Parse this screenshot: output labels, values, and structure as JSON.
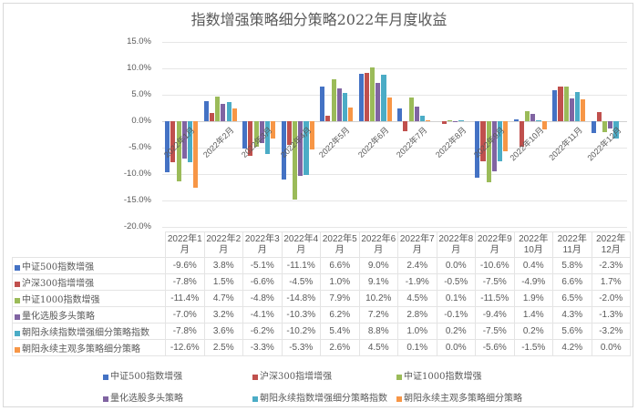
{
  "chart_data": {
    "type": "bar",
    "title": "指数增强策略细分策略2022年月度收益",
    "xlabel": "",
    "ylabel": "",
    "ylim": [
      -0.2,
      0.15
    ],
    "yticks": [
      "15.0%",
      "10.0%",
      "5.0%",
      "0.0%",
      "-5.0%",
      "-10.0%",
      "-15.0%",
      "-20.0%"
    ],
    "grid": true,
    "legend_position": "bottom",
    "categories": [
      "2022年1月",
      "2022年2月",
      "2022年3月",
      "2022年4月",
      "2022年5月",
      "2022年6月",
      "2022年7月",
      "2022年8月",
      "2022年9月",
      "2022年10月",
      "2022年11月",
      "2022年12月"
    ],
    "table_headers": [
      [
        "2022年1",
        "月"
      ],
      [
        "2022年2",
        "月"
      ],
      [
        "2022年3",
        "月"
      ],
      [
        "2022年4",
        "月"
      ],
      [
        "2022年5",
        "月"
      ],
      [
        "2022年6",
        "月"
      ],
      [
        "2022年7",
        "月"
      ],
      [
        "2022年8",
        "月"
      ],
      [
        "2022年9",
        "月"
      ],
      [
        "2022年",
        "10月"
      ],
      [
        "2022年",
        "11月"
      ],
      [
        "2022年",
        "12月"
      ]
    ],
    "series": [
      {
        "name": "中证500指数增强",
        "color": "#4472c4",
        "values": [
          -9.6,
          3.8,
          -5.1,
          -11.1,
          6.6,
          9.0,
          2.4,
          0.0,
          -10.6,
          0.4,
          5.8,
          -2.3
        ],
        "labels": [
          "-9.6%",
          "3.8%",
          "-5.1%",
          "-11.1%",
          "6.6%",
          "9.0%",
          "2.4%",
          "0.0%",
          "-10.6%",
          "0.4%",
          "5.8%",
          "-2.3%"
        ]
      },
      {
        "name": "沪深300指增增强",
        "color": "#c0504d",
        "values": [
          -7.8,
          1.5,
          -6.6,
          -4.5,
          1.0,
          9.1,
          -1.9,
          -0.5,
          -7.5,
          -4.9,
          6.6,
          1.7
        ],
        "labels": [
          "-7.8%",
          "1.5%",
          "-6.6%",
          "-4.5%",
          "1.0%",
          "9.1%",
          "-1.9%",
          "-0.5%",
          "-7.5%",
          "-4.9%",
          "6.6%",
          "1.7%"
        ]
      },
      {
        "name": "中证1000指数增强",
        "color": "#9bbb59",
        "values": [
          -11.4,
          4.7,
          -4.8,
          -14.8,
          7.9,
          10.2,
          4.5,
          0.1,
          -11.5,
          1.9,
          6.5,
          -2.0
        ],
        "labels": [
          "-11.4%",
          "4.7%",
          "-4.8%",
          "-14.8%",
          "7.9%",
          "10.2%",
          "4.5%",
          "0.1%",
          "-11.5%",
          "1.9%",
          "6.5%",
          "-2.0%"
        ]
      },
      {
        "name": "量化选股多头策略",
        "color": "#8064a2",
        "values": [
          -7.0,
          3.2,
          -4.1,
          -10.3,
          6.2,
          7.2,
          2.8,
          -0.1,
          -9.4,
          1.4,
          4.3,
          -1.3
        ],
        "labels": [
          "-7.0%",
          "3.2%",
          "-4.1%",
          "-10.3%",
          "6.2%",
          "7.2%",
          "2.8%",
          "-0.1%",
          "-9.4%",
          "1.4%",
          "4.3%",
          "-1.3%"
        ]
      },
      {
        "name": "朝阳永续指数增强细分策略指数",
        "color": "#4bacc6",
        "values": [
          -7.8,
          3.6,
          -6.2,
          -10.2,
          5.4,
          8.8,
          1.0,
          0.2,
          -7.5,
          0.2,
          5.6,
          -3.2
        ],
        "labels": [
          "-7.8%",
          "3.6%",
          "-6.2%",
          "-10.2%",
          "5.4%",
          "8.8%",
          "1.0%",
          "0.2%",
          "-7.5%",
          "0.2%",
          "5.6%",
          "-3.2%"
        ]
      },
      {
        "name": "朝阳永续主观多策略细分策略",
        "color": "#f79646",
        "values": [
          -12.6,
          2.5,
          -3.3,
          -5.3,
          2.6,
          4.5,
          0.1,
          0.0,
          -5.6,
          -1.5,
          4.2,
          0.0
        ],
        "labels": [
          "-12.6%",
          "2.5%",
          "-3.3%",
          "-5.3%",
          "2.6%",
          "4.5%",
          "0.1%",
          "0.0%",
          "-5.6%",
          "-1.5%",
          "4.2%",
          "0.0%"
        ]
      }
    ]
  }
}
